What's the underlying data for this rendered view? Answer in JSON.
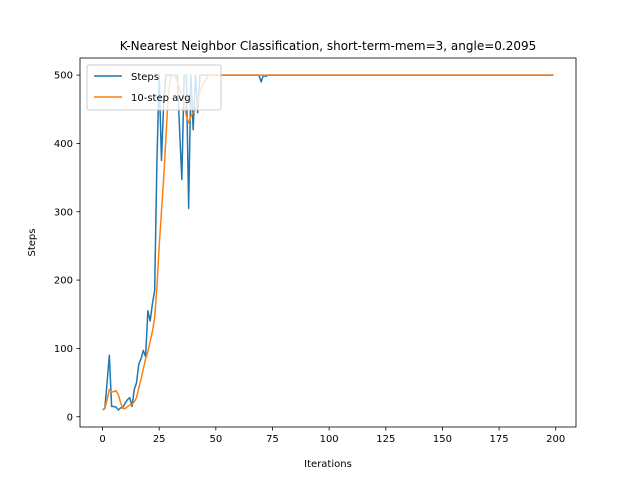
{
  "chart_data": {
    "type": "line",
    "title": "K-Nearest Neighbor Classification, short-term-mem=3, angle=0.2095",
    "xlabel": "Iterations",
    "ylabel": "Steps",
    "xlim": [
      -9.95,
      208.95
    ],
    "ylim": [
      -15,
      525
    ],
    "xticks": [
      0,
      25,
      50,
      75,
      100,
      125,
      150,
      175,
      200
    ],
    "yticks": [
      0,
      100,
      200,
      300,
      400,
      500
    ],
    "legend_position": "top-left",
    "colors": {
      "steps": "#1f77b4",
      "avg": "#ff7f0e"
    },
    "series": [
      {
        "name": "Steps",
        "points": [
          [
            0,
            10
          ],
          [
            1,
            12
          ],
          [
            2,
            50
          ],
          [
            3,
            90
          ],
          [
            4,
            15
          ],
          [
            5,
            15
          ],
          [
            6,
            14
          ],
          [
            7,
            10
          ],
          [
            8,
            13
          ],
          [
            9,
            14
          ],
          [
            10,
            20
          ],
          [
            11,
            25
          ],
          [
            12,
            28
          ],
          [
            13,
            15
          ],
          [
            14,
            40
          ],
          [
            15,
            50
          ],
          [
            16,
            77
          ],
          [
            17,
            85
          ],
          [
            18,
            97
          ],
          [
            19,
            88
          ],
          [
            20,
            155
          ],
          [
            21,
            140
          ],
          [
            22,
            165
          ],
          [
            23,
            185
          ],
          [
            24,
            375
          ],
          [
            25,
            500
          ],
          [
            26,
            375
          ],
          [
            27,
            460
          ],
          [
            28,
            500
          ],
          [
            29,
            500
          ],
          [
            30,
            500
          ],
          [
            31,
            500
          ],
          [
            32,
            500
          ],
          [
            33,
            500
          ],
          [
            34,
            420
          ],
          [
            35,
            347
          ],
          [
            36,
            500
          ],
          [
            37,
            500
          ],
          [
            38,
            305
          ],
          [
            39,
            500
          ],
          [
            40,
            420
          ],
          [
            41,
            500
          ],
          [
            42,
            445
          ],
          [
            43,
            500
          ],
          [
            44,
            500
          ],
          [
            45,
            500
          ],
          [
            46,
            500
          ],
          [
            47,
            500
          ],
          [
            48,
            500
          ],
          [
            49,
            500
          ],
          [
            50,
            500
          ],
          [
            69,
            500
          ],
          [
            70,
            490
          ],
          [
            71,
            500
          ],
          [
            72,
            498
          ],
          [
            73,
            500
          ],
          [
            199,
            500
          ]
        ]
      },
      {
        "name": "10-step avg",
        "points": [
          [
            0,
            10
          ],
          [
            1,
            12
          ],
          [
            2,
            25
          ],
          [
            3,
            40
          ],
          [
            4,
            36
          ],
          [
            5,
            37
          ],
          [
            6,
            38
          ],
          [
            7,
            32
          ],
          [
            8,
            20
          ],
          [
            9,
            12
          ],
          [
            10,
            12
          ],
          [
            11,
            15
          ],
          [
            12,
            17
          ],
          [
            13,
            18
          ],
          [
            14,
            22
          ],
          [
            15,
            28
          ],
          [
            16,
            42
          ],
          [
            17,
            55
          ],
          [
            18,
            70
          ],
          [
            19,
            85
          ],
          [
            20,
            95
          ],
          [
            21,
            110
          ],
          [
            22,
            125
          ],
          [
            23,
            145
          ],
          [
            24,
            190
          ],
          [
            25,
            250
          ],
          [
            26,
            300
          ],
          [
            27,
            350
          ],
          [
            28,
            410
          ],
          [
            29,
            470
          ],
          [
            30,
            495
          ],
          [
            31,
            500
          ],
          [
            32,
            500
          ],
          [
            33,
            490
          ],
          [
            34,
            480
          ],
          [
            35,
            470
          ],
          [
            36,
            460
          ],
          [
            37,
            440
          ],
          [
            38,
            430
          ],
          [
            39,
            440
          ],
          [
            40,
            445
          ],
          [
            41,
            450
          ],
          [
            42,
            460
          ],
          [
            43,
            475
          ],
          [
            44,
            485
          ],
          [
            45,
            490
          ],
          [
            46,
            495
          ],
          [
            47,
            500
          ],
          [
            48,
            500
          ],
          [
            49,
            500
          ],
          [
            199,
            500
          ]
        ]
      }
    ]
  }
}
